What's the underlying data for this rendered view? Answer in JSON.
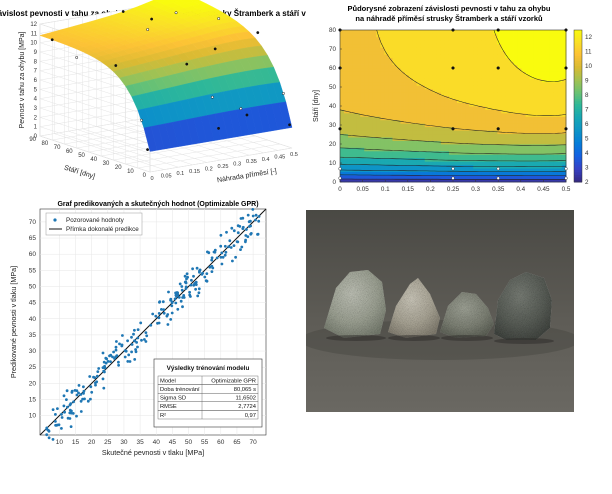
{
  "chart_data": [
    {
      "type": "surface3d",
      "title": "Závislost pevnosti v tahu za ohybu na náhradě příměsí strusky Štramberk a stáří vzorků",
      "xlabel": "Náhrada příměsí [-]",
      "ylabel": "Stáří [dny]",
      "zlabel": "Pevnost v tahu za ohybu [MPa]",
      "x_ticks": [
        "0",
        "0.05",
        "0.1",
        "0.15",
        "0.2",
        "0.25",
        "0.3",
        "0.35",
        "0.4",
        "0.45",
        "0.5"
      ],
      "y_ticks": [
        "0",
        "10",
        "20",
        "30",
        "40",
        "50",
        "60",
        "70",
        "80",
        "90"
      ],
      "z_ticks": [
        "0",
        "1",
        "2",
        "3",
        "4",
        "5",
        "6",
        "7",
        "8",
        "9",
        "10",
        "11",
        "12"
      ],
      "xlim": [
        0,
        0.5
      ],
      "ylim": [
        0,
        90
      ],
      "zlim": [
        0,
        12
      ]
    },
    {
      "type": "contour",
      "title": [
        "Půdorysné zobrazení závislosti pevnosti v tahu za ohybu",
        "na náhradě příměsí strusky Štramberk a stáří vzorků"
      ],
      "xlabel": "Náhrada příměsí [-]",
      "ylabel": "Stáří [dny]",
      "x_ticks": [
        "0",
        "0.05",
        "0.1",
        "0.15",
        "0.2",
        "0.25",
        "0.3",
        "0.35",
        "0.4",
        "0.45",
        "0.5"
      ],
      "y_ticks": [
        "0",
        "10",
        "20",
        "30",
        "40",
        "50",
        "60",
        "70",
        "80"
      ],
      "colorbar_ticks": [
        "2",
        "3",
        "4",
        "5",
        "6",
        "7",
        "8",
        "9",
        "10",
        "11",
        "12"
      ],
      "xlim": [
        0,
        0.5
      ],
      "ylim": [
        0,
        80
      ],
      "clim": [
        2,
        12.5
      ],
      "points": [
        {
          "x": 0,
          "y": 80
        },
        {
          "x": 0.25,
          "y": 80
        },
        {
          "x": 0.35,
          "y": 80
        },
        {
          "x": 0.5,
          "y": 80
        },
        {
          "x": 0,
          "y": 60
        },
        {
          "x": 0.25,
          "y": 60
        },
        {
          "x": 0.35,
          "y": 60
        },
        {
          "x": 0.5,
          "y": 60
        },
        {
          "x": 0,
          "y": 28
        },
        {
          "x": 0.25,
          "y": 28
        },
        {
          "x": 0.35,
          "y": 28
        },
        {
          "x": 0.5,
          "y": 28
        },
        {
          "x": 0,
          "y": 7
        },
        {
          "x": 0.25,
          "y": 7
        },
        {
          "x": 0.35,
          "y": 7
        },
        {
          "x": 0.5,
          "y": 7
        },
        {
          "x": 0,
          "y": 2
        },
        {
          "x": 0.25,
          "y": 2
        },
        {
          "x": 0.35,
          "y": 2
        },
        {
          "x": 0.5,
          "y": 2
        }
      ]
    },
    {
      "type": "scatter",
      "title": "Graf predikovaných a skutečných hodnot (Optimizable GPR)",
      "xlabel": "Skutečné pevnosti v tlaku [MPa]",
      "ylabel": "Predikované pevnosti v tlaku [MPa]",
      "x_ticks": [
        10,
        15,
        20,
        25,
        30,
        35,
        40,
        45,
        50,
        55,
        60,
        65,
        70
      ],
      "y_ticks": [
        10,
        15,
        20,
        25,
        30,
        35,
        40,
        45,
        50,
        55,
        60,
        65,
        70
      ],
      "xlim": [
        4,
        74
      ],
      "ylim": [
        4,
        74
      ],
      "legend": [
        "Pozorované hodnoty",
        "Přímka dokonalé predikce"
      ],
      "legend_position": "top-left",
      "color": "#1f77b4",
      "n_points": 260,
      "results_table": {
        "title": "Výsledky trénování modelu",
        "rows": [
          [
            "Model",
            "Optimizable GPR"
          ],
          [
            "Doba trénování",
            "80,065 s"
          ],
          [
            "Sigma SD",
            "11,6502"
          ],
          [
            "RMSE",
            "2,7724"
          ],
          [
            "R²",
            "0,97"
          ]
        ]
      }
    }
  ],
  "photo": {
    "description_icon": "concrete-samples-photo"
  }
}
